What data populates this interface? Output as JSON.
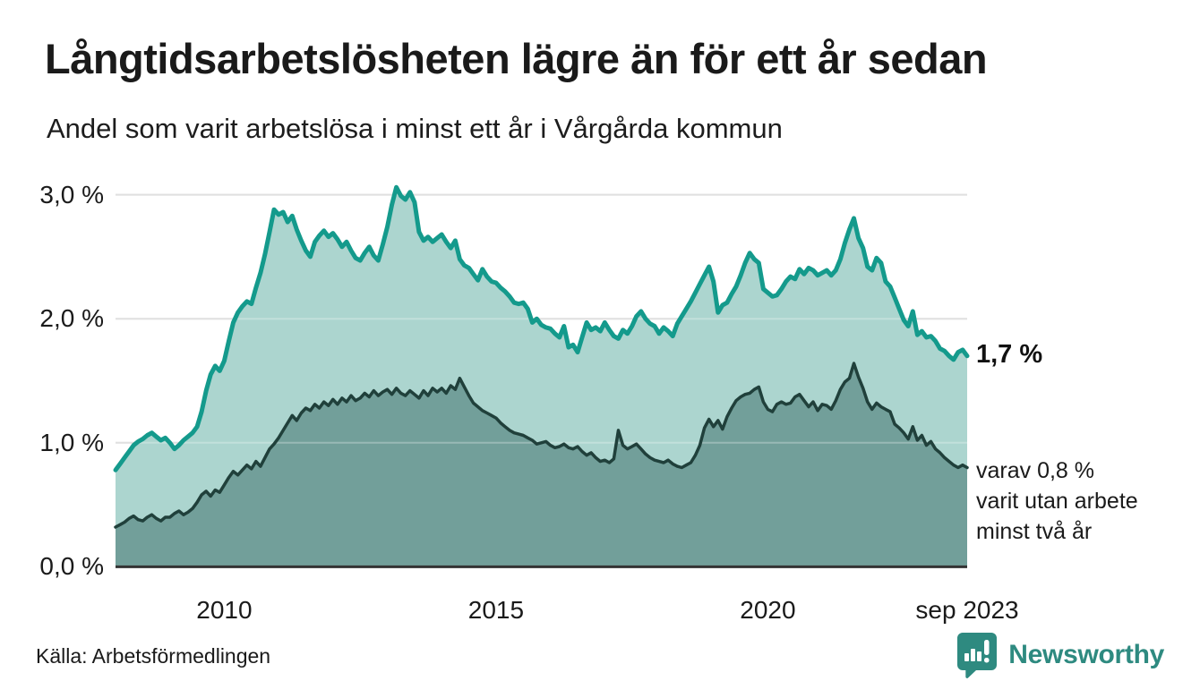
{
  "header": {
    "title": "Långtidsarbetslösheten lägre än för ett år sedan",
    "subtitle": "Andel som varit arbetslösa i minst ett år i Vårgårda kommun"
  },
  "chart_data": {
    "type": "area",
    "title": "Långtidsarbetslösheten lägre än för ett år sedan",
    "subtitle": "Andel som varit arbetslösa i minst ett år i Vårgårda kommun",
    "xlabel": "",
    "ylabel": "",
    "grid": true,
    "legend_position": "none",
    "x_axis": {
      "start": 2008.0,
      "end": 2023.667,
      "tick_positions": [
        2010,
        2015,
        2020,
        2023.667
      ],
      "tick_labels": [
        "2010",
        "2015",
        "2020",
        "sep 2023"
      ]
    },
    "y_axis": {
      "lim": [
        0,
        3.2
      ],
      "ticks": [
        {
          "value": 0,
          "label": "0,0 %"
        },
        {
          "value": 1,
          "label": "1,0 %"
        },
        {
          "value": 2,
          "label": "2,0 %"
        },
        {
          "value": 3,
          "label": "3,0 %"
        }
      ]
    },
    "series": [
      {
        "name": "Andel som varit arbetslösa i minst ett år",
        "end_value_label": "1,7 %",
        "line_color": "#149a8c",
        "fill_color": "#a9d4cd",
        "line_width": 5,
        "values": [
          0.78,
          0.83,
          0.88,
          0.93,
          0.98,
          1.01,
          1.03,
          1.06,
          1.08,
          1.05,
          1.02,
          1.04,
          1.0,
          0.95,
          0.98,
          1.02,
          1.05,
          1.08,
          1.13,
          1.25,
          1.42,
          1.55,
          1.62,
          1.58,
          1.66,
          1.82,
          1.97,
          2.05,
          2.1,
          2.14,
          2.12,
          2.25,
          2.37,
          2.52,
          2.7,
          2.88,
          2.84,
          2.86,
          2.78,
          2.83,
          2.72,
          2.63,
          2.55,
          2.5,
          2.62,
          2.67,
          2.71,
          2.66,
          2.69,
          2.64,
          2.58,
          2.62,
          2.55,
          2.49,
          2.47,
          2.53,
          2.58,
          2.51,
          2.47,
          2.6,
          2.74,
          2.92,
          3.06,
          2.99,
          2.96,
          3.02,
          2.94,
          2.7,
          2.63,
          2.66,
          2.62,
          2.65,
          2.68,
          2.62,
          2.57,
          2.63,
          2.48,
          2.43,
          2.41,
          2.36,
          2.31,
          2.4,
          2.34,
          2.3,
          2.29,
          2.25,
          2.22,
          2.18,
          2.13,
          2.12,
          2.13,
          2.08,
          1.97,
          2.0,
          1.95,
          1.93,
          1.92,
          1.88,
          1.85,
          1.94,
          1.77,
          1.79,
          1.73,
          1.85,
          1.97,
          1.91,
          1.93,
          1.9,
          1.97,
          1.91,
          1.86,
          1.84,
          1.91,
          1.88,
          1.94,
          2.02,
          2.06,
          2.0,
          1.96,
          1.94,
          1.88,
          1.93,
          1.9,
          1.86,
          1.96,
          2.02,
          2.08,
          2.14,
          2.21,
          2.28,
          2.35,
          2.42,
          2.3,
          2.05,
          2.11,
          2.13,
          2.2,
          2.26,
          2.35,
          2.45,
          2.53,
          2.48,
          2.45,
          2.24,
          2.21,
          2.18,
          2.19,
          2.24,
          2.3,
          2.34,
          2.32,
          2.4,
          2.36,
          2.41,
          2.39,
          2.35,
          2.37,
          2.39,
          2.35,
          2.39,
          2.48,
          2.61,
          2.72,
          2.81,
          2.65,
          2.57,
          2.42,
          2.39,
          2.49,
          2.45,
          2.3,
          2.26,
          2.17,
          2.08,
          1.99,
          1.94,
          2.06,
          1.87,
          1.9,
          1.85,
          1.86,
          1.82,
          1.76,
          1.74,
          1.7,
          1.67,
          1.73,
          1.75,
          1.7
        ]
      },
      {
        "name": "varav utan arbete minst två år",
        "end_value_label": "varav 0,8 % varit utan arbete minst två år",
        "line_color": "#20403b",
        "fill_color": "#6f9d98",
        "line_width": 3.5,
        "values": [
          0.32,
          0.34,
          0.36,
          0.39,
          0.41,
          0.38,
          0.37,
          0.4,
          0.42,
          0.39,
          0.37,
          0.4,
          0.4,
          0.43,
          0.45,
          0.42,
          0.44,
          0.47,
          0.52,
          0.58,
          0.61,
          0.57,
          0.62,
          0.6,
          0.66,
          0.72,
          0.77,
          0.74,
          0.78,
          0.82,
          0.79,
          0.85,
          0.81,
          0.88,
          0.95,
          0.99,
          1.04,
          1.1,
          1.16,
          1.22,
          1.18,
          1.24,
          1.28,
          1.26,
          1.31,
          1.28,
          1.33,
          1.3,
          1.35,
          1.31,
          1.36,
          1.33,
          1.38,
          1.34,
          1.36,
          1.4,
          1.37,
          1.42,
          1.38,
          1.41,
          1.43,
          1.39,
          1.44,
          1.4,
          1.38,
          1.42,
          1.39,
          1.36,
          1.42,
          1.38,
          1.44,
          1.41,
          1.44,
          1.4,
          1.46,
          1.43,
          1.52,
          1.45,
          1.38,
          1.32,
          1.29,
          1.26,
          1.24,
          1.22,
          1.2,
          1.16,
          1.13,
          1.1,
          1.08,
          1.07,
          1.06,
          1.04,
          1.02,
          0.99,
          1.0,
          1.01,
          0.98,
          0.96,
          0.97,
          0.99,
          0.96,
          0.95,
          0.97,
          0.93,
          0.9,
          0.92,
          0.88,
          0.85,
          0.86,
          0.84,
          0.87,
          1.1,
          0.98,
          0.95,
          0.97,
          0.99,
          0.95,
          0.91,
          0.88,
          0.86,
          0.85,
          0.84,
          0.86,
          0.83,
          0.81,
          0.8,
          0.82,
          0.84,
          0.9,
          0.98,
          1.12,
          1.19,
          1.13,
          1.18,
          1.11,
          1.21,
          1.28,
          1.34,
          1.37,
          1.39,
          1.4,
          1.43,
          1.45,
          1.33,
          1.27,
          1.25,
          1.31,
          1.33,
          1.31,
          1.32,
          1.37,
          1.39,
          1.34,
          1.29,
          1.33,
          1.26,
          1.31,
          1.3,
          1.27,
          1.34,
          1.43,
          1.49,
          1.52,
          1.64,
          1.53,
          1.44,
          1.33,
          1.27,
          1.32,
          1.29,
          1.27,
          1.25,
          1.15,
          1.12,
          1.08,
          1.03,
          1.13,
          1.02,
          1.06,
          0.98,
          1.01,
          0.95,
          0.92,
          0.88,
          0.85,
          0.82,
          0.8,
          0.82,
          0.8
        ]
      }
    ]
  },
  "annotations": {
    "upper_end_label": "1,7 %",
    "lower_line1": "varav 0,8 %",
    "lower_line2": "varit utan arbete",
    "lower_line3": "minst två år"
  },
  "footer": {
    "source": "Källa: Arbetsförmedlingen",
    "brand": "Newsworthy"
  },
  "colors": {
    "accent_teal": "#149a8c",
    "light_fill": "#a9d4cd",
    "dark_fill": "#6f9d98",
    "dark_line": "#20403b",
    "gridline": "#d4d4d4",
    "baseline": "#333333",
    "text": "#1a1a1a",
    "brand_teal": "#2e8a80"
  }
}
